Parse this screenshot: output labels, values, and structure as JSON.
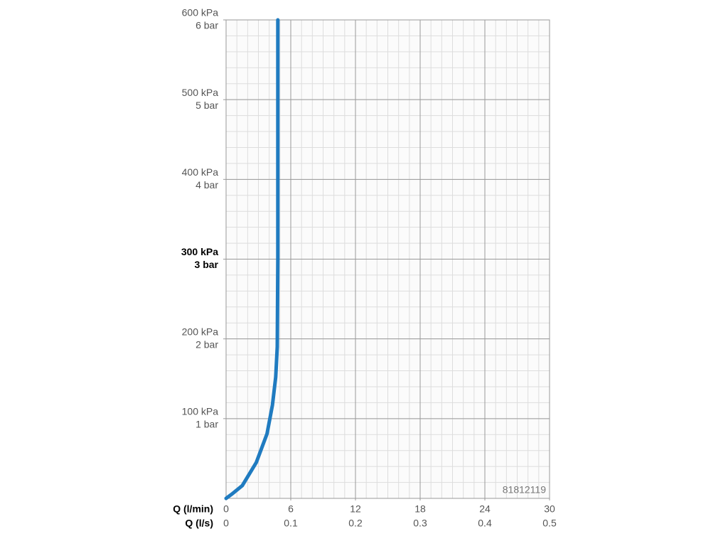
{
  "chart_data": {
    "type": "line",
    "x": [
      0,
      0.5,
      1.5,
      2.8,
      3.8,
      4.3,
      4.6,
      4.75,
      4.8,
      4.8
    ],
    "values": [
      0,
      5,
      16,
      45,
      81,
      117,
      152,
      190,
      300,
      600
    ],
    "color": "#1f7bc0",
    "xlabel": "Q (l/min)",
    "x2label": "Q (l/s)",
    "xlim": [
      0,
      30
    ],
    "xticks": [
      0,
      6,
      12,
      18,
      24,
      30
    ],
    "x2lim": [
      0,
      0.5
    ],
    "x2ticks": [
      0,
      0.1,
      0.2,
      0.3,
      0.4,
      0.5
    ],
    "ylim": [
      0,
      600
    ],
    "yticks": [
      {
        "value": 100,
        "label": "100 kPa"
      },
      {
        "value": 200,
        "label": "200 kPa"
      },
      {
        "value": 300,
        "label": "300 kPa"
      },
      {
        "value": 400,
        "label": "400 kPa"
      },
      {
        "value": 500,
        "label": "500 kPa"
      },
      {
        "value": 600,
        "label": "600 kPa"
      }
    ],
    "y2lim": [
      0,
      6
    ],
    "y2ticks": [
      {
        "value": 1,
        "label": "1 bar"
      },
      {
        "value": 2,
        "label": "2 bar"
      },
      {
        "value": 3,
        "label": "3 bar"
      },
      {
        "value": 4,
        "label": "4 bar"
      },
      {
        "value": 5,
        "label": "5 bar"
      },
      {
        "value": 6,
        "label": "6 bar"
      }
    ],
    "bold_ytick": 300,
    "grid": true,
    "annotation": "81812119"
  }
}
